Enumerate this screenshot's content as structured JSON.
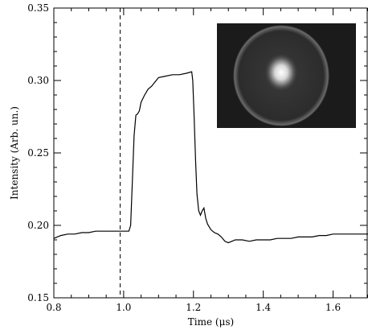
{
  "chart_data": {
    "type": "line",
    "xlabel": "Time (μs)",
    "ylabel": "Intensity (Arb. un.)",
    "xlim": [
      0.8,
      1.7
    ],
    "ylim": [
      0.15,
      0.35
    ],
    "x_ticks": [
      "0.8",
      "1.0",
      "1.2",
      "1.4",
      "1.6"
    ],
    "y_ticks": [
      "0.15",
      "0.20",
      "0.25",
      "0.30",
      "0.35"
    ],
    "grid": false,
    "legend": "none",
    "line_color": "#000000",
    "vertical_marker": {
      "x": 0.99,
      "style": "dashed"
    },
    "inset": {
      "content": "grayscale-photo",
      "description_icon": "bright-spot-in-circular-frame"
    },
    "series": [
      {
        "x": [
          0.8,
          0.82,
          0.84,
          0.86,
          0.88,
          0.9,
          0.92,
          0.94,
          0.96,
          0.98,
          1.0,
          1.015,
          1.02,
          1.025,
          1.03,
          1.035,
          1.04,
          1.045,
          1.05,
          1.06,
          1.07,
          1.08,
          1.09,
          1.1,
          1.12,
          1.14,
          1.16,
          1.18,
          1.195,
          1.198,
          1.202,
          1.206,
          1.21,
          1.215,
          1.22,
          1.225,
          1.23,
          1.235,
          1.24,
          1.25,
          1.26,
          1.27,
          1.28,
          1.29,
          1.3,
          1.32,
          1.34,
          1.36,
          1.38,
          1.4,
          1.42,
          1.44,
          1.46,
          1.48,
          1.5,
          1.52,
          1.54,
          1.56,
          1.58,
          1.6,
          1.62,
          1.64,
          1.66,
          1.68,
          1.7
        ],
        "y": [
          0.191,
          0.193,
          0.194,
          0.194,
          0.195,
          0.195,
          0.196,
          0.196,
          0.196,
          0.196,
          0.196,
          0.196,
          0.2,
          0.23,
          0.262,
          0.276,
          0.277,
          0.279,
          0.285,
          0.29,
          0.294,
          0.296,
          0.299,
          0.302,
          0.303,
          0.304,
          0.304,
          0.305,
          0.306,
          0.3,
          0.275,
          0.245,
          0.222,
          0.21,
          0.207,
          0.21,
          0.212,
          0.205,
          0.201,
          0.197,
          0.195,
          0.194,
          0.192,
          0.189,
          0.188,
          0.19,
          0.19,
          0.189,
          0.19,
          0.19,
          0.19,
          0.191,
          0.191,
          0.191,
          0.192,
          0.192,
          0.192,
          0.193,
          0.193,
          0.194,
          0.194,
          0.194,
          0.194,
          0.194,
          0.194
        ]
      }
    ]
  }
}
